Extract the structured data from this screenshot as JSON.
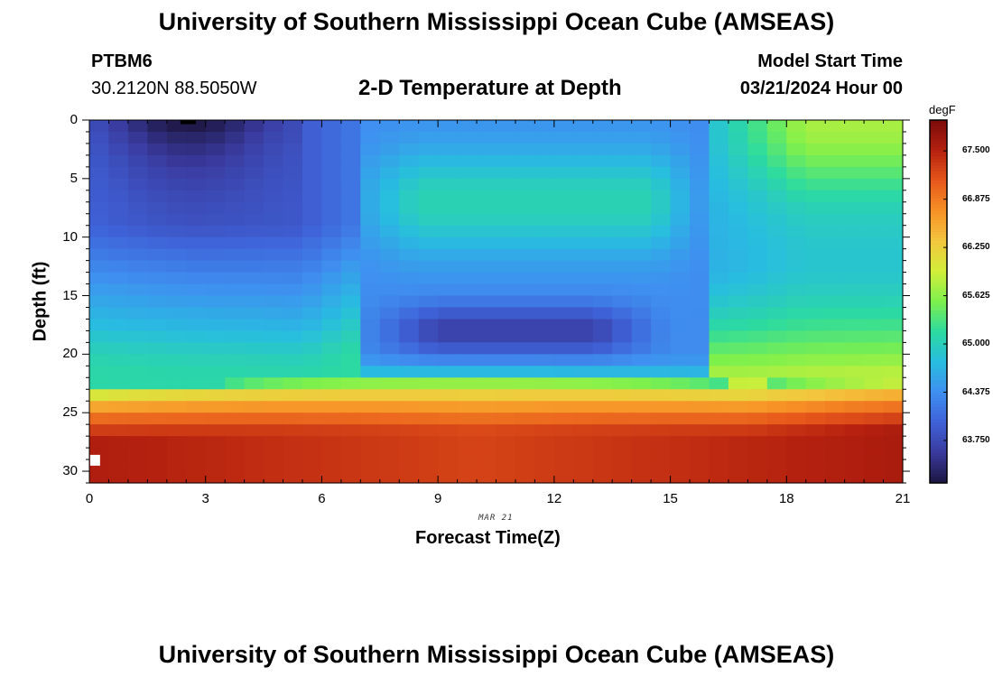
{
  "header": {
    "title": "University of Southern Mississippi Ocean Cube (AMSEAS)",
    "station": "PTBM6",
    "coords": "30.2120N  88.5050W",
    "plot_title": "2-D Temperature at Depth",
    "model_start_label": "Model Start Time",
    "model_start_value": "03/21/2024 Hour 00"
  },
  "footer": {
    "title": "University of Southern Mississippi Ocean Cube (AMSEAS)"
  },
  "chart_data": {
    "type": "heatmap",
    "title": "2-D Temperature at Depth",
    "xlabel": "Forecast Time(Z)",
    "ylabel": "Depth (ft)",
    "date_label": "MAR 21",
    "xlim": [
      0,
      21
    ],
    "ylim": [
      0,
      31
    ],
    "x_ticks": [
      "0",
      "3",
      "6",
      "9",
      "12",
      "15",
      "18",
      "21"
    ],
    "y_ticks": [
      "0",
      "5",
      "10",
      "15",
      "20",
      "25",
      "30"
    ],
    "colorbar": {
      "unit": "degF",
      "min": 63.2,
      "max": 67.9,
      "ticks": [
        "63.750",
        "64.375",
        "65.000",
        "65.625",
        "66.250",
        "66.875",
        "67.500"
      ]
    },
    "colormap": [
      "#1c1640",
      "#3a3a9e",
      "#3f62d8",
      "#3f8ff0",
      "#28bde0",
      "#2cdaa0",
      "#7ef04c",
      "#d2ee3a",
      "#f3c63e",
      "#f79126",
      "#e6561b",
      "#b4200f",
      "#7a0b0b"
    ]
  }
}
